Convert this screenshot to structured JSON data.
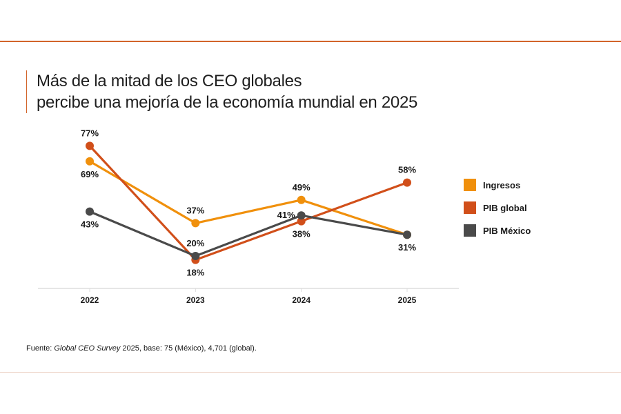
{
  "title": {
    "line1": "Más de la mitad de los CEO globales",
    "line2": "percibe una mejoría de la economía mundial en 2025"
  },
  "source": {
    "prefix": "Fuente: ",
    "italic": "Global CEO Survey",
    "suffix": " 2025, base: 75 (México), 4,701 (global)."
  },
  "colors": {
    "accent_rule": "#d2642a",
    "axis": "#dddddd"
  },
  "chart_data": {
    "type": "line",
    "title": "Más de la mitad de los CEO globales percibe una mejoría de la economía mundial en 2025",
    "xlabel": "",
    "ylabel": "",
    "x": [
      "2022",
      "2023",
      "2024",
      "2025"
    ],
    "ylim": [
      0,
      80
    ],
    "grid": false,
    "legend_position": "right",
    "unit": "%",
    "series": [
      {
        "name": "Ingresos",
        "color": "#f0900c",
        "values": [
          69,
          37,
          49,
          31
        ],
        "label_pos": [
          "below",
          "above",
          "above",
          "none"
        ]
      },
      {
        "name": "PIB global",
        "color": "#d14f1a",
        "values": [
          77,
          18,
          38,
          58
        ],
        "label_pos": [
          "above",
          "below",
          "below",
          "above"
        ]
      },
      {
        "name": "PIB México",
        "color": "#4a4a4a",
        "values": [
          43,
          20,
          41,
          31
        ],
        "label_pos": [
          "below",
          "above",
          "left",
          "below"
        ]
      }
    ]
  }
}
